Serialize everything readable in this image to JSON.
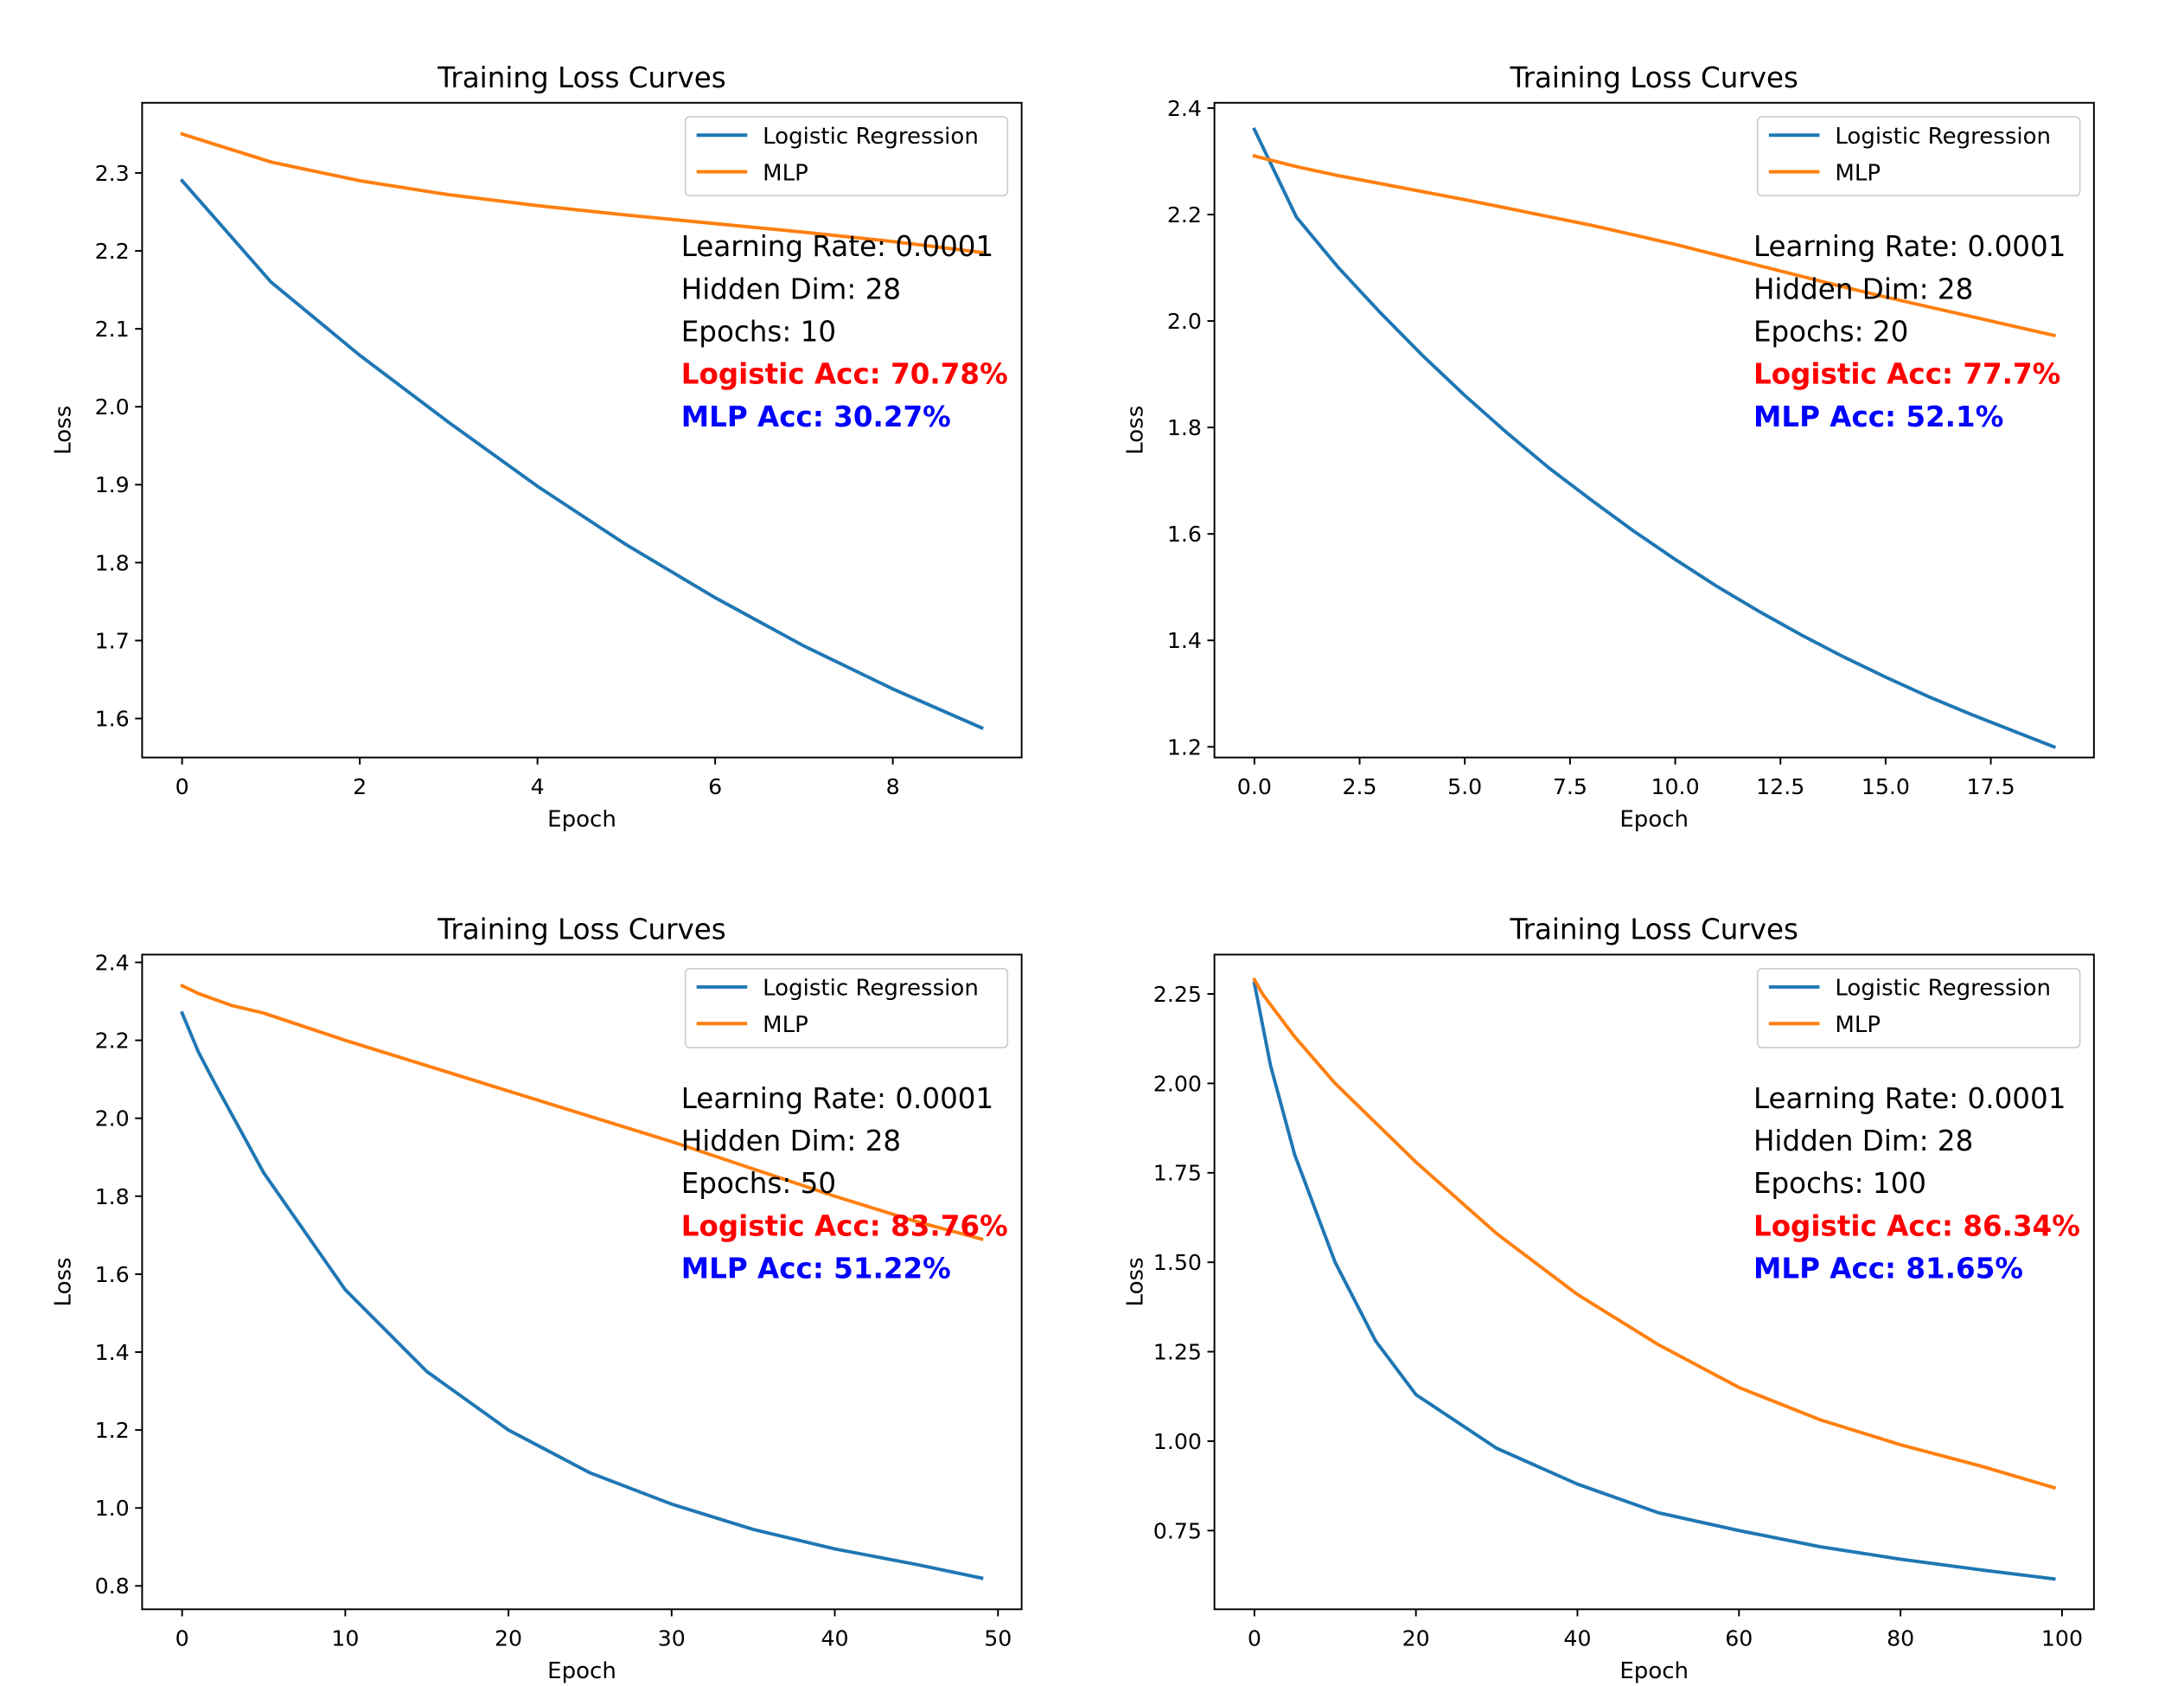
{
  "chart_data": [
    {
      "type": "line",
      "title": "Training Loss Curves",
      "xlabel": "Epoch",
      "ylabel": "Loss",
      "xlim": [
        -0.45,
        9.45
      ],
      "ylim": [
        1.55,
        2.39
      ],
      "xticks": [
        0,
        2,
        4,
        6,
        8
      ],
      "xtick_labels": [
        "0",
        "2",
        "4",
        "6",
        "8"
      ],
      "yticks": [
        1.6,
        1.7,
        1.8,
        1.9,
        2.0,
        2.1,
        2.2,
        2.3
      ],
      "ytick_labels": [
        "1.6",
        "1.7",
        "1.8",
        "1.9",
        "2.0",
        "2.1",
        "2.2",
        "2.3"
      ],
      "grid": false,
      "legend_position": "top-right",
      "legend_entries": [
        "Logistic Regression",
        "MLP"
      ],
      "annotations": [
        "Learning Rate: 0.0001",
        "Hidden Dim: 28",
        "Epochs: 10",
        "Logistic Acc: 70.78%",
        "MLP Acc: 30.27%"
      ],
      "series": [
        {
          "name": "Logistic Regression",
          "color": "#1f77b4",
          "x": [
            0,
            1,
            2,
            3,
            4,
            5,
            6,
            7,
            8,
            9
          ],
          "y": [
            2.29,
            2.16,
            2.066,
            1.98,
            1.898,
            1.823,
            1.755,
            1.693,
            1.638,
            1.588
          ]
        },
        {
          "name": "MLP",
          "color": "#ff7f0e",
          "x": [
            0,
            1,
            2,
            3,
            4,
            5,
            6,
            7,
            8,
            9
          ],
          "y": [
            2.35,
            2.314,
            2.29,
            2.272,
            2.258,
            2.246,
            2.235,
            2.224,
            2.212,
            2.198
          ]
        }
      ]
    },
    {
      "type": "line",
      "title": "Training Loss Curves",
      "xlabel": "Epoch",
      "ylabel": "Loss",
      "xlim": [
        -0.95,
        19.95
      ],
      "ylim": [
        1.18,
        2.41
      ],
      "xticks": [
        0,
        2.5,
        5,
        7.5,
        10,
        12.5,
        15,
        17.5
      ],
      "xtick_labels": [
        "0.0",
        "2.5",
        "5.0",
        "7.5",
        "10.0",
        "12.5",
        "15.0",
        "17.5"
      ],
      "yticks": [
        1.2,
        1.4,
        1.6,
        1.8,
        2.0,
        2.2,
        2.4
      ],
      "ytick_labels": [
        "1.2",
        "1.4",
        "1.6",
        "1.8",
        "2.0",
        "2.2",
        "2.4"
      ],
      "grid": false,
      "legend_position": "top-right",
      "legend_entries": [
        "Logistic Regression",
        "MLP"
      ],
      "annotations": [
        "Learning Rate: 0.0001",
        "Hidden Dim: 28",
        "Epochs: 20",
        "Logistic Acc: 77.7%",
        "MLP Acc: 52.1%"
      ],
      "series": [
        {
          "name": "Logistic Regression",
          "color": "#1f77b4",
          "x": [
            0,
            1,
            2,
            3,
            4,
            5,
            6,
            7,
            8,
            9,
            10,
            11,
            12,
            13,
            14,
            15,
            16,
            17,
            18,
            19
          ],
          "y": [
            2.36,
            2.195,
            2.1,
            2.015,
            1.935,
            1.86,
            1.79,
            1.724,
            1.664,
            1.606,
            1.552,
            1.501,
            1.454,
            1.41,
            1.369,
            1.331,
            1.295,
            1.262,
            1.231,
            1.2
          ]
        },
        {
          "name": "MLP",
          "color": "#ff7f0e",
          "x": [
            0,
            1,
            2,
            3,
            4,
            5,
            6,
            7,
            8,
            9,
            10,
            11,
            12,
            13,
            14,
            15,
            16,
            17,
            18,
            19
          ],
          "y": [
            2.31,
            2.29,
            2.273,
            2.258,
            2.243,
            2.228,
            2.212,
            2.196,
            2.18,
            2.162,
            2.144,
            2.124,
            2.104,
            2.084,
            2.064,
            2.045,
            2.027,
            2.009,
            1.991,
            1.973
          ]
        }
      ]
    },
    {
      "type": "line",
      "title": "Training Loss Curves",
      "xlabel": "Epoch",
      "ylabel": "Loss",
      "xlim": [
        -2.45,
        51.45
      ],
      "ylim": [
        0.74,
        2.42
      ],
      "xticks": [
        0,
        10,
        20,
        30,
        40,
        50
      ],
      "xtick_labels": [
        "0",
        "10",
        "20",
        "30",
        "40",
        "50"
      ],
      "yticks": [
        0.8,
        1.0,
        1.2,
        1.4,
        1.6,
        1.8,
        2.0,
        2.2,
        2.4
      ],
      "ytick_labels": [
        "0.8",
        "1.0",
        "1.2",
        "1.4",
        "1.6",
        "1.8",
        "2.0",
        "2.2",
        "2.4"
      ],
      "grid": false,
      "legend_position": "top-right",
      "legend_entries": [
        "Logistic Regression",
        "MLP"
      ],
      "annotations": [
        "Learning Rate: 0.0001",
        "Hidden Dim: 28",
        "Epochs: 50",
        "Logistic Acc: 83.76%",
        "MLP Acc: 51.22%"
      ],
      "series": [
        {
          "name": "Logistic Regression",
          "color": "#1f77b4",
          "x": [
            0,
            1,
            2,
            5,
            10,
            15,
            20,
            25,
            30,
            35,
            40,
            45,
            49
          ],
          "y": [
            2.27,
            2.17,
            2.09,
            1.86,
            1.56,
            1.35,
            1.2,
            1.09,
            1.01,
            0.945,
            0.895,
            0.855,
            0.82
          ]
        },
        {
          "name": "MLP",
          "color": "#ff7f0e",
          "x": [
            0,
            1,
            2,
            3,
            5,
            10,
            15,
            20,
            25,
            30,
            35,
            40,
            45,
            49
          ],
          "y": [
            2.34,
            2.32,
            2.305,
            2.29,
            2.27,
            2.2,
            2.135,
            2.07,
            2.005,
            1.94,
            1.87,
            1.8,
            1.735,
            1.69
          ]
        }
      ]
    },
    {
      "type": "line",
      "title": "Training Loss Curves",
      "xlabel": "Epoch",
      "ylabel": "Loss",
      "xlim": [
        -4.95,
        103.95
      ],
      "ylim": [
        0.53,
        2.36
      ],
      "xticks": [
        0,
        20,
        40,
        60,
        80,
        100
      ],
      "xtick_labels": [
        "0",
        "20",
        "40",
        "60",
        "80",
        "100"
      ],
      "yticks": [
        0.75,
        1.0,
        1.25,
        1.5,
        1.75,
        2.0,
        2.25
      ],
      "ytick_labels": [
        "0.75",
        "1.00",
        "1.25",
        "1.50",
        "1.75",
        "2.00",
        "2.25"
      ],
      "grid": false,
      "legend_position": "top-right",
      "legend_entries": [
        "Logistic Regression",
        "MLP"
      ],
      "annotations": [
        "Learning Rate: 0.0001",
        "Hidden Dim: 28",
        "Epochs: 100",
        "Logistic Acc: 86.34%",
        "MLP Acc: 81.65%"
      ],
      "series": [
        {
          "name": "Logistic Regression",
          "color": "#1f77b4",
          "x": [
            0,
            2,
            5,
            10,
            15,
            20,
            30,
            40,
            50,
            60,
            70,
            80,
            90,
            99
          ],
          "y": [
            2.28,
            2.05,
            1.8,
            1.5,
            1.28,
            1.13,
            0.98,
            0.88,
            0.8,
            0.75,
            0.705,
            0.67,
            0.64,
            0.615
          ]
        },
        {
          "name": "MLP",
          "color": "#ff7f0e",
          "x": [
            0,
            1,
            2,
            5,
            10,
            20,
            30,
            40,
            50,
            60,
            70,
            80,
            90,
            99
          ],
          "y": [
            2.29,
            2.25,
            2.22,
            2.13,
            2.0,
            1.78,
            1.58,
            1.41,
            1.27,
            1.15,
            1.06,
            0.99,
            0.93,
            0.87
          ]
        }
      ]
    }
  ],
  "colors": {
    "logistic_line": "#1f77b4",
    "mlp_line": "#ff7f0e",
    "logistic_acc_text": "#ff0000",
    "mlp_acc_text": "#0000ff"
  }
}
